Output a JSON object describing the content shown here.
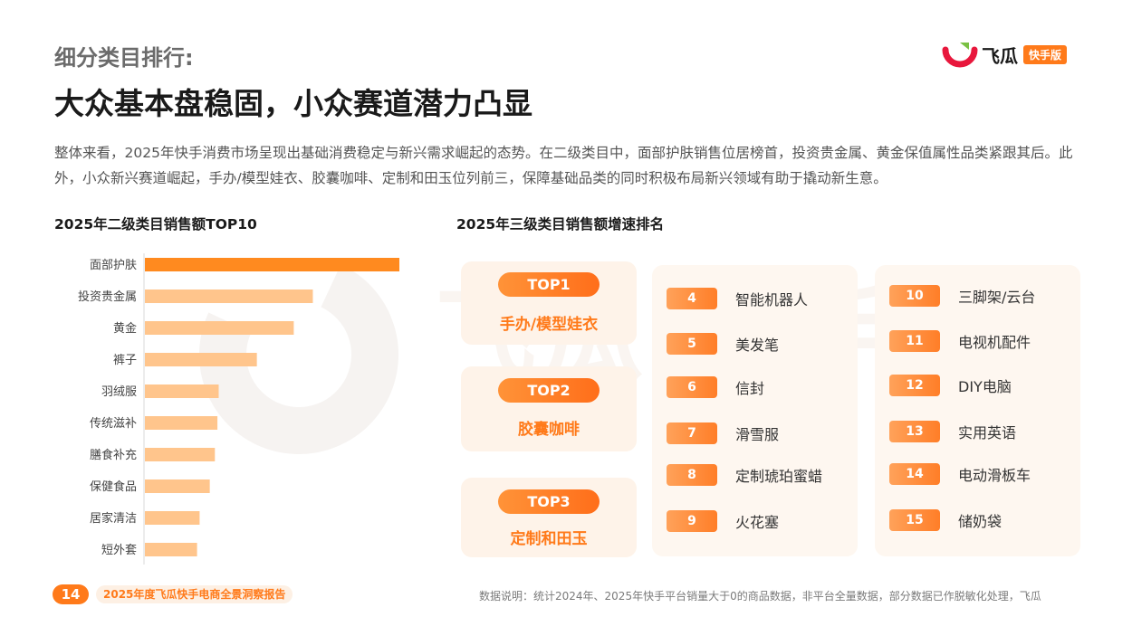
{
  "header": {
    "subtitle": "细分类目排行:",
    "title": "大众基本盘稳固，小众赛道潜力凸显",
    "description": "整体来看，2025年快手消费市场呈现出基础消费稳定与新兴需求崛起的态势。在二级类目中，面部护肤销售位居榜首，投资贵金属、黄金保值属性品类紧跟其后。此外，小众新兴赛道崛起，手办/模型娃衣、胶囊咖啡、定制和田玉位列前三，保障基础品类的同时积极布局新兴领域有助于撬动新生意。"
  },
  "logo": {
    "word": "飞瓜",
    "badge": "快手版",
    "colors": {
      "red": "#e8173c",
      "green": "#7ac143",
      "orange": "#ff7a1a"
    }
  },
  "sections": {
    "left_title": "2025年二级类目销售额TOP10",
    "right_title": "2025年三级类目销售额增速排名"
  },
  "chart_data": {
    "type": "bar",
    "orientation": "horizontal",
    "title": "2025年二级类目销售额TOP10",
    "categories": [
      "面部护肤",
      "投资贵金属",
      "黄金",
      "裤子",
      "羽绒服",
      "传统滋补",
      "膳食补充",
      "保健食品",
      "居家清洁",
      "短外套"
    ],
    "values": [
      100,
      66,
      58.5,
      44,
      29,
      28.5,
      27.5,
      25.5,
      21.5,
      20.5
    ],
    "highlight_color": "#ff8a1f",
    "bar_color": "#ffc58c",
    "grid": false,
    "value_axis_labels": false
  },
  "top3": [
    {
      "rank": "TOP1",
      "name": "手办/模型娃衣"
    },
    {
      "rank": "TOP2",
      "name": "胶囊咖啡"
    },
    {
      "rank": "TOP3",
      "name": "定制和田玉"
    }
  ],
  "ranking_left": [
    {
      "rank": "4",
      "name": "智能机器人"
    },
    {
      "rank": "5",
      "name": "美发笔"
    },
    {
      "rank": "6",
      "name": "信封"
    },
    {
      "rank": "7",
      "name": "滑雪服"
    },
    {
      "rank": "8",
      "name": "定制琥珀蜜蜡"
    },
    {
      "rank": "9",
      "name": "火花塞"
    }
  ],
  "ranking_right": [
    {
      "rank": "10",
      "name": "三脚架/云台"
    },
    {
      "rank": "11",
      "name": "电视机配件"
    },
    {
      "rank": "12",
      "name": "DIY电脑"
    },
    {
      "rank": "13",
      "name": "实用英语"
    },
    {
      "rank": "14",
      "name": "电动滑板车"
    },
    {
      "rank": "15",
      "name": "储奶袋"
    }
  ],
  "footer": {
    "page": "14",
    "report": "2025年度飞瓜快手电商全景洞察报告",
    "note": "数据说明：统计2024年、2025年快手平台销量大于0的商品数据，非平台全量数据，部分数据已作脱敏化处理，飞瓜"
  }
}
